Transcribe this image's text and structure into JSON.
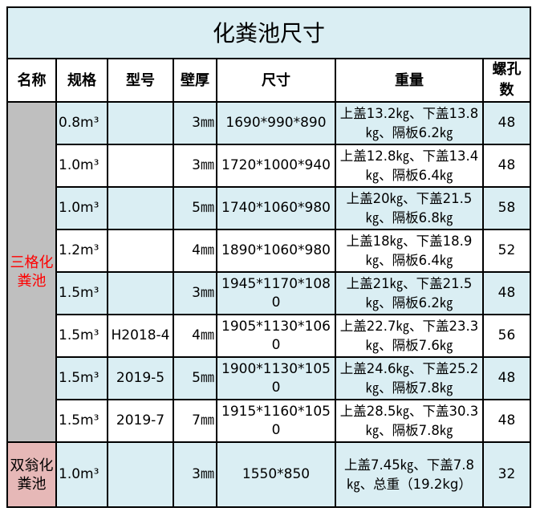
{
  "title": "化粪池尺寸",
  "headers": [
    "名称",
    "规格",
    "型号",
    "壁厚",
    "尺寸",
    "重量",
    "螺孔数"
  ],
  "groups": [
    {
      "name": "三格化粪池",
      "color": "#BFBFBF",
      "text_color": "#FF0000"
    },
    {
      "name": "双翁化粪池",
      "color": "#E6B8B7",
      "text_color": "#000000"
    }
  ],
  "rows": [
    {
      "spec": "0.8m³",
      "model": "",
      "thickness": "3㎜",
      "size": "1690*990*890",
      "weight": "上盖13.2㎏、下盖13.8㎏、隔板6.2㎏",
      "holes": "48"
    },
    {
      "spec": "1.0m³",
      "model": "",
      "thickness": "3㎜",
      "size": "1720*1000*940",
      "weight": "上盖12.8㎏、下盖13.4㎏、隔板6.4㎏",
      "holes": "48"
    },
    {
      "spec": "1.0m³",
      "model": "",
      "thickness": "5㎜",
      "size": "1740*1060*980",
      "weight": "上盖20㎏、下盖21.5㎏、隔板6.8㎏",
      "holes": "58"
    },
    {
      "spec": "1.2m³",
      "model": "",
      "thickness": "4㎜",
      "size": "1890*1060*980",
      "weight": "上盖18㎏、下盖18.9㎏、隔板6.4㎏",
      "holes": "52"
    },
    {
      "spec": "1.5m³",
      "model": "",
      "thickness": "3㎜",
      "size": "1945*1170*1080",
      "weight": "上盖21㎏、下盖21.5㎏、隔板6.2㎏",
      "holes": "48"
    },
    {
      "spec": "1.5m³",
      "model": "H2018-4",
      "thickness": "4㎜",
      "size": "1905*1130*1060",
      "weight": "上盖22.7㎏、下盖23.3㎏、隔板7.6㎏",
      "holes": "56"
    },
    {
      "spec": "1.5m³",
      "model": "2019-5",
      "thickness": "5㎜",
      "size": "1900*1130*1050",
      "weight": "上盖24.6㎏、下盖25.2㎏、隔板7.8㎏",
      "holes": "48"
    },
    {
      "spec": "1.5m³",
      "model": "2019-7",
      "thickness": "7㎜",
      "size": "1915*1160*1050",
      "weight": "上盖28.5㎏、下盖30.3㎏、隔板7.8㎏",
      "holes": "48"
    },
    {
      "spec": "1.0m³",
      "model": "",
      "thickness": "3㎜",
      "size": "1550*850",
      "weight": "上盖7.45㎏、下盖7.8㎏、总重（19.2kg）",
      "holes": "32"
    }
  ],
  "row_colors": {
    "blue": "#DAEEF3",
    "white": "#FFFFFF"
  }
}
